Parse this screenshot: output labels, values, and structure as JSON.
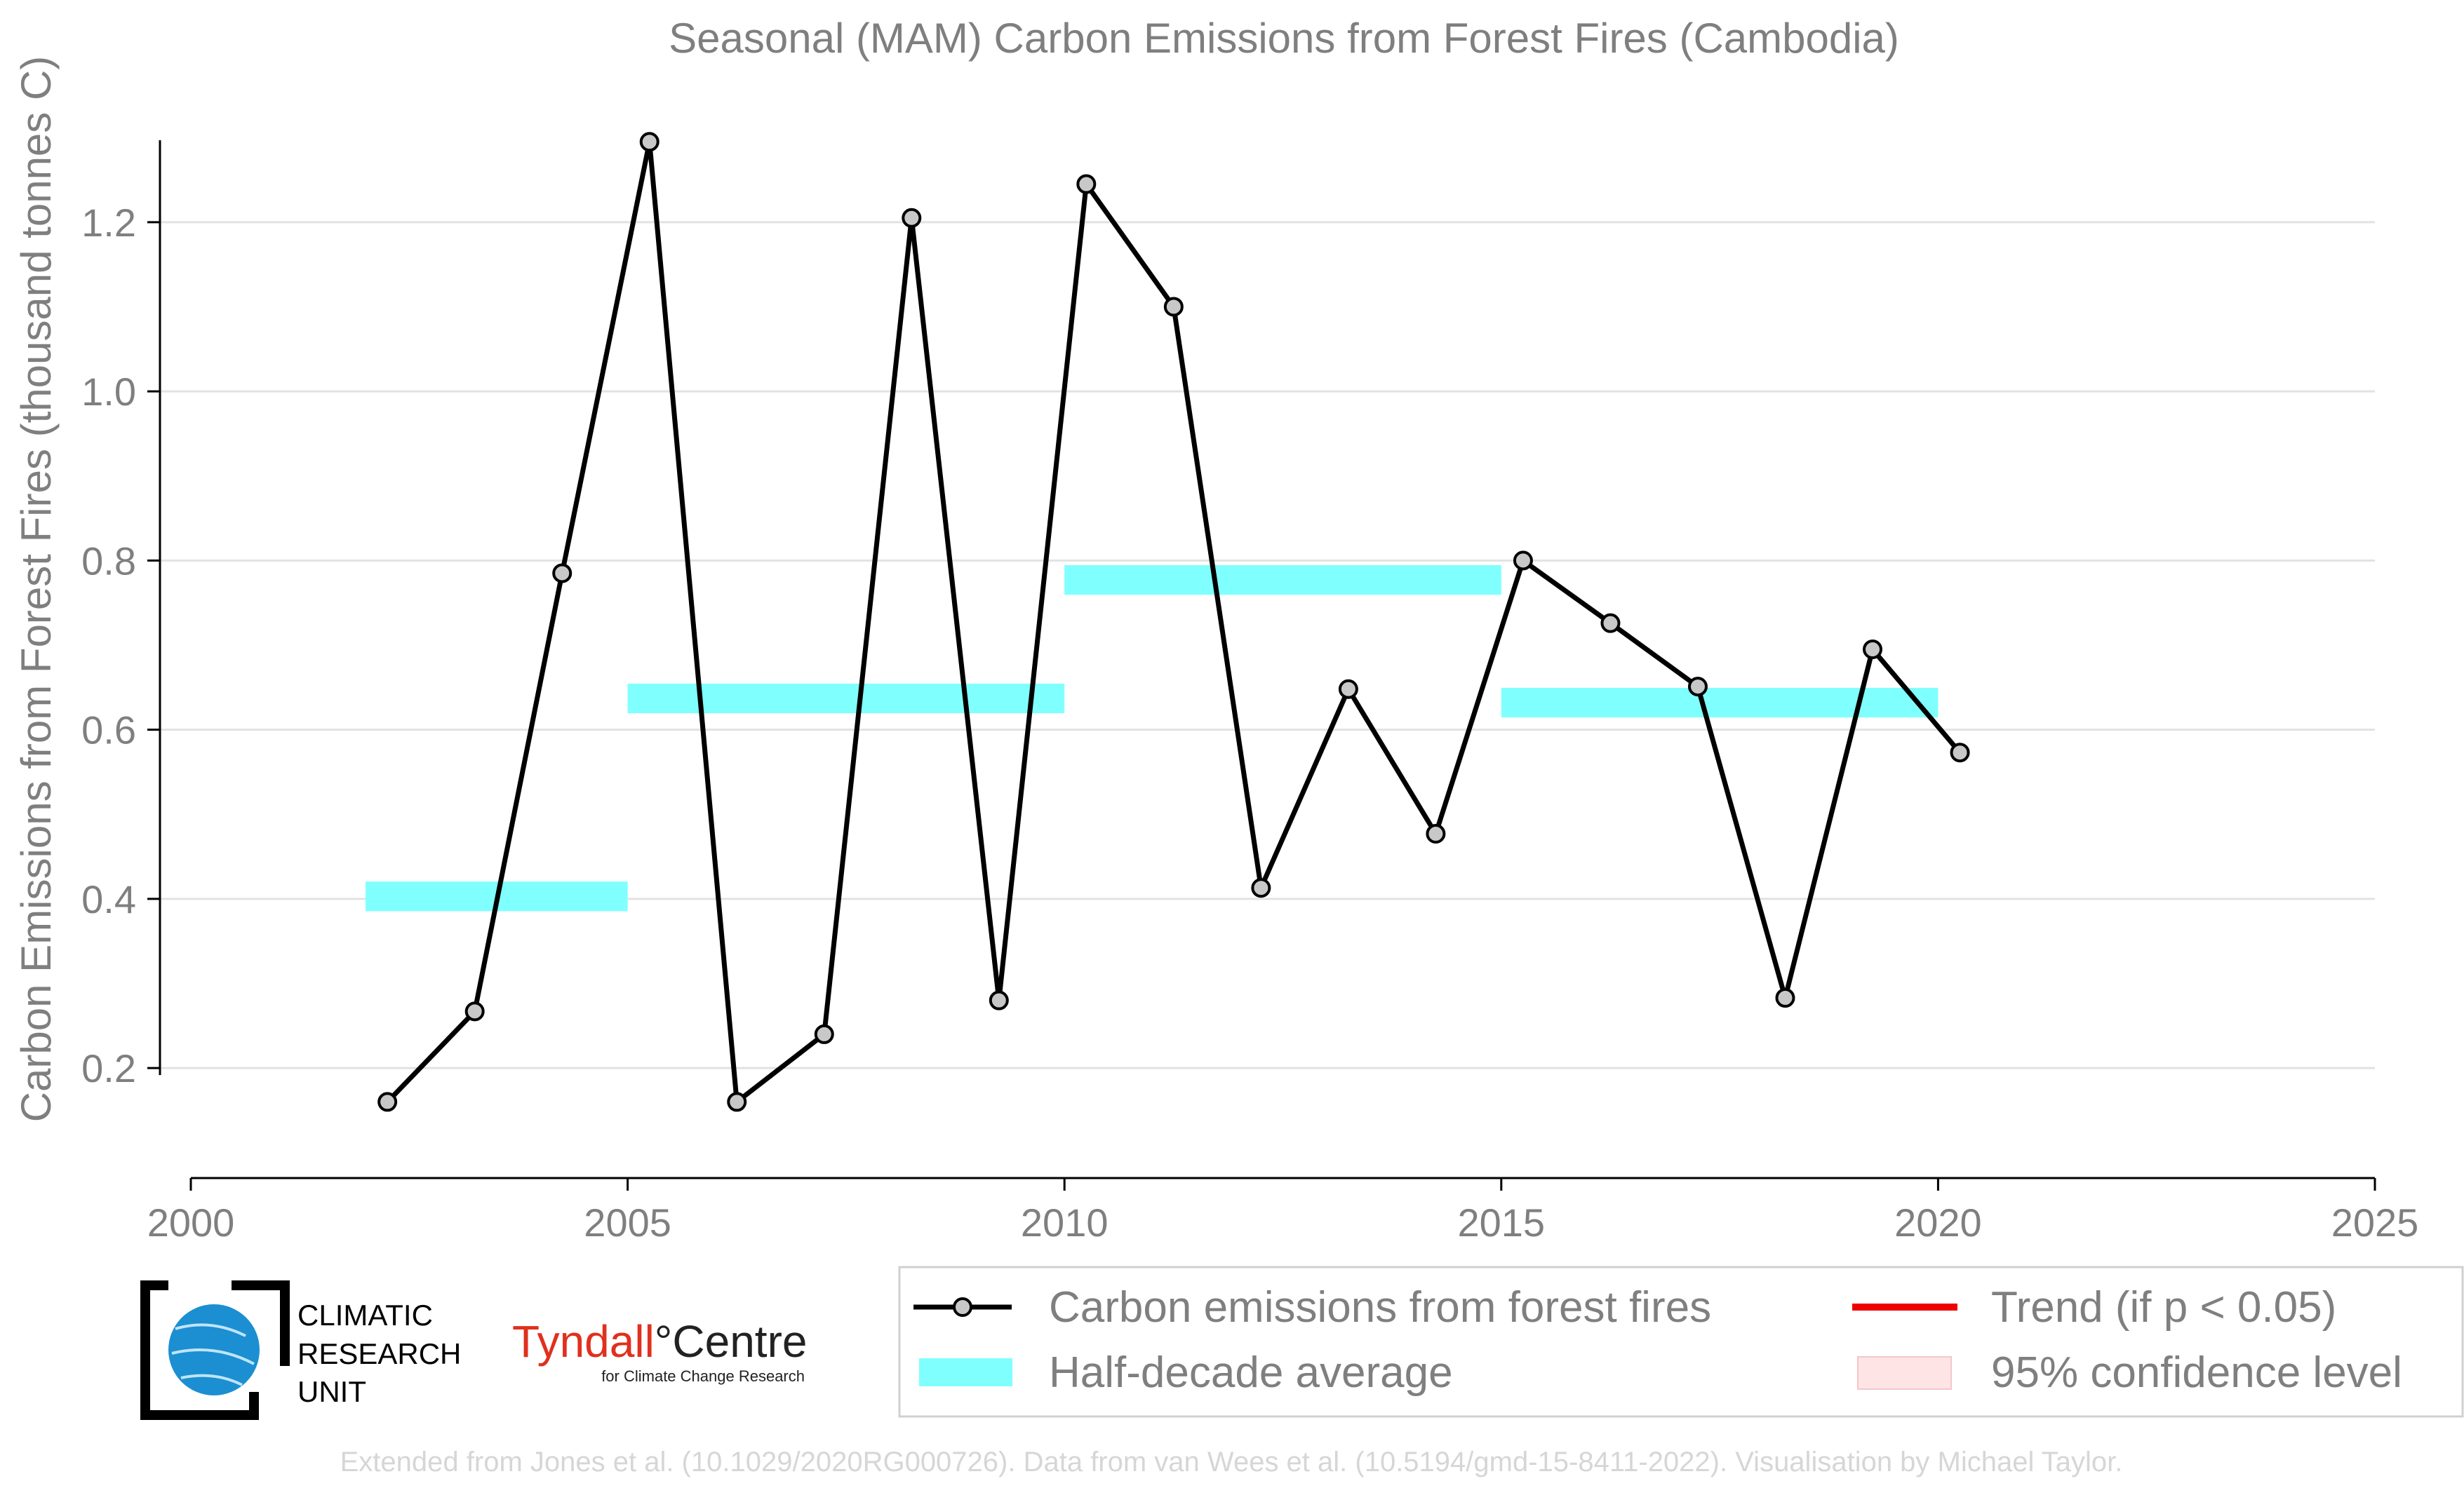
{
  "chart_data": {
    "type": "line",
    "title": "Seasonal (MAM) Carbon Emissions from Forest Fires (Cambodia)",
    "ylabel": "Carbon Emissions from Forest Fires (thousand tonnes C)",
    "xlabel": "",
    "xlim": [
      2000,
      2025
    ],
    "ylim": [
      0.07,
      1.33
    ],
    "xticks": [
      "2000",
      "2005",
      "2010",
      "2015",
      "2020",
      "2025"
    ],
    "yticks": [
      "0.2",
      "0.4",
      "0.6",
      "0.8",
      "1.0",
      "1.2"
    ],
    "grid": "horizontal",
    "series": [
      {
        "name": "Carbon emissions from forest fires",
        "color": "#000000",
        "marker_color": "#c8c8c8",
        "x": [
          2002.25,
          2003.25,
          2004.25,
          2005.25,
          2006.25,
          2007.25,
          2008.25,
          2009.25,
          2010.25,
          2011.25,
          2012.25,
          2013.25,
          2014.25,
          2015.25,
          2016.25,
          2017.25,
          2018.25,
          2019.25,
          2020.25
        ],
        "y": [
          0.16,
          0.267,
          0.785,
          1.295,
          0.16,
          0.24,
          1.205,
          0.28,
          1.245,
          1.1,
          0.413,
          0.648,
          0.477,
          0.8,
          0.726,
          0.651,
          0.283,
          0.695,
          0.573
        ]
      }
    ],
    "half_decade_average": {
      "name": "Half-decade average",
      "color": "#80ffff",
      "bars": [
        {
          "start": 2002,
          "end": 2005,
          "value": 0.403
        },
        {
          "start": 2005,
          "end": 2010,
          "value": 0.637
        },
        {
          "start": 2010,
          "end": 2015,
          "value": 0.777
        },
        {
          "start": 2015,
          "end": 2020,
          "value": 0.632
        }
      ]
    },
    "legend": {
      "placement": "bottom-right",
      "entries": [
        {
          "label": "Carbon emissions from forest fires",
          "kind": "line-marker",
          "color": "#000000"
        },
        {
          "label": "Trend (if p < 0.05)",
          "kind": "line",
          "color": "#ee0000"
        },
        {
          "label": "Half-decade average",
          "kind": "band",
          "color": "#80ffff"
        },
        {
          "label": "95% confidence level",
          "kind": "band",
          "color": "#ffe4e6"
        }
      ]
    }
  },
  "logos": {
    "cru": {
      "lines": [
        "CLIMATIC",
        "RESEARCH",
        "UNIT"
      ]
    },
    "tyndall": {
      "name_part1": "Tyndall",
      "name_part2": "°Centre",
      "subtitle": "for Climate Change Research"
    }
  },
  "credits": "Extended from Jones et al. (10.1029/2020RG000726). Data from van Wees et al. (10.5194/gmd-15-8411-2022). Visualisation by Michael Taylor."
}
